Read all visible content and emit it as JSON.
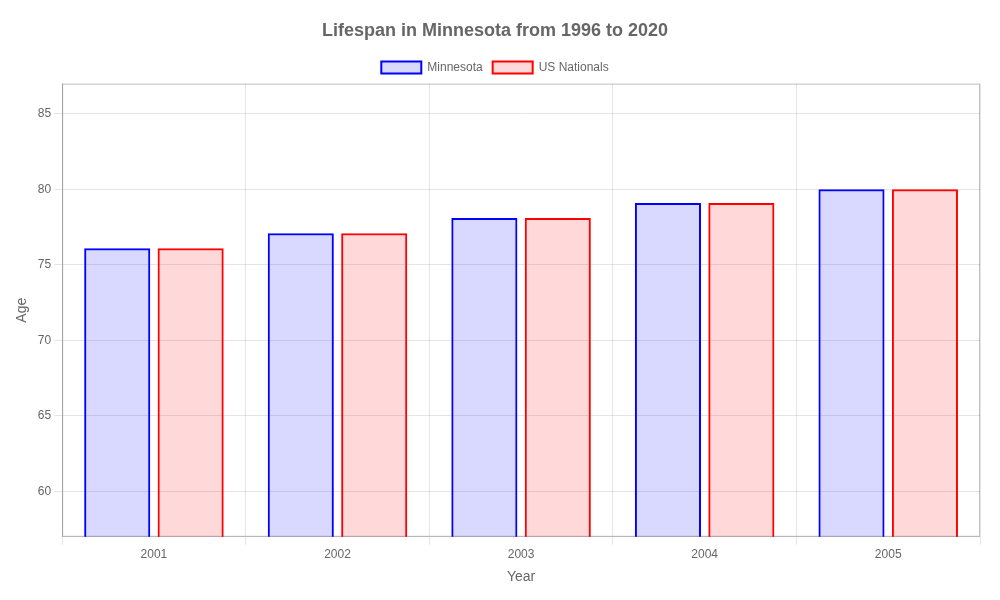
{
  "chart_data": {
    "type": "bar",
    "title": "Lifespan in Minnesota from 1996 to 2020",
    "x_label": "Year",
    "y_label": "Age",
    "categories": [
      "2001",
      "2002",
      "2003",
      "2004",
      "2005"
    ],
    "series": [
      {
        "name": "Minnesota",
        "color": "#0000ff",
        "values": [
          76.1,
          77.1,
          78.1,
          79.1,
          80.0
        ]
      },
      {
        "name": "US Nationals",
        "color": "#ff0000",
        "values": [
          76.1,
          77.1,
          78.1,
          79.1,
          80.0
        ]
      }
    ],
    "ylim": [
      57,
      87
    ],
    "yticks": [
      60,
      65,
      70,
      75,
      80,
      85
    ],
    "grid": true,
    "legend": "top"
  }
}
